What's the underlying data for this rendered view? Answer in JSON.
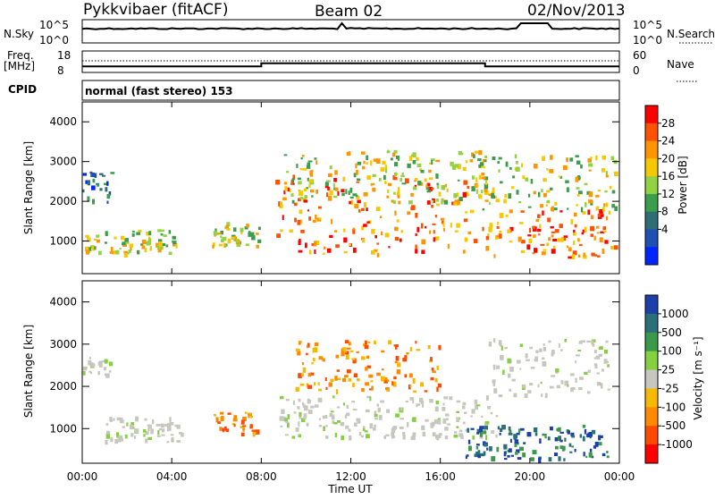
{
  "header": {
    "station": "Pykkvibaer (fitACF)",
    "beam": "Beam 02",
    "date": "02/Nov/2013"
  },
  "strips": {
    "nsky": {
      "left_label": "N.Sky",
      "right_label": "N.Search",
      "left_ticks": [
        "10^5",
        "10^0"
      ],
      "right_ticks": [
        "10^5",
        "10^0"
      ]
    },
    "freq": {
      "left_label_line1": "Freq.",
      "left_label_line2": "[MHz]",
      "right_label": "Nave",
      "left_ticks": [
        "18",
        "8"
      ],
      "right_ticks": [
        "60",
        "0"
      ],
      "freq_segments": [
        {
          "start_hr": 0,
          "end_hr": 8,
          "mhz": 10.8
        },
        {
          "start_hr": 8,
          "end_hr": 18,
          "mhz": 12.8
        },
        {
          "start_hr": 18,
          "end_hr": 24,
          "mhz": 10.8
        }
      ]
    },
    "cpid": {
      "label": "CPID",
      "value": "normal (fast stereo) 153"
    }
  },
  "chart_data": [
    {
      "type": "heatmap",
      "name": "power",
      "ylabel": "Slant Range [km]",
      "xlabel": "Time UT",
      "xlim_hours": [
        0,
        24
      ],
      "ylim_km": [
        180,
        4500
      ],
      "x_ticks": [
        "00:00",
        "04:00",
        "08:00",
        "12:00",
        "16:00",
        "20:00",
        "00:00"
      ],
      "y_ticks": [
        1000,
        2000,
        3000,
        4000
      ],
      "colorbar": {
        "label": "Power [dB]",
        "ticks": [
          "28",
          "24",
          "20",
          "16",
          "12",
          "8",
          "4"
        ],
        "colors": [
          "#ff0000",
          "#ff5200",
          "#ff9600",
          "#f5c800",
          "#93d243",
          "#3c9e4b",
          "#2e6e74",
          "#2050b2",
          "#0026ff"
        ]
      },
      "echo_regions": [
        {
          "t0": 0.1,
          "t1": 4.2,
          "r0": 700,
          "r1": 1300,
          "level": "mid"
        },
        {
          "t0": 0.0,
          "t1": 1.3,
          "r0": 2000,
          "r1": 2800,
          "level": "low"
        },
        {
          "t0": 5.8,
          "t1": 8.0,
          "r0": 900,
          "r1": 1500,
          "level": "mid"
        },
        {
          "t0": 8.6,
          "t1": 18.0,
          "r0": 700,
          "r1": 2700,
          "level": "high"
        },
        {
          "t0": 9.0,
          "t1": 18.0,
          "r0": 2000,
          "r1": 3300,
          "level": "mid"
        },
        {
          "t0": 18.0,
          "t1": 23.8,
          "r0": 600,
          "r1": 1800,
          "level": "high"
        },
        {
          "t0": 17.5,
          "t1": 23.8,
          "r0": 1800,
          "r1": 3200,
          "level": "mid"
        }
      ]
    },
    {
      "type": "heatmap",
      "name": "velocity",
      "ylabel": "Slant Range [km]",
      "xlabel": "Time UT",
      "xlim_hours": [
        0,
        24
      ],
      "ylim_km": [
        180,
        4500
      ],
      "x_ticks": [
        "00:00",
        "04:00",
        "08:00",
        "12:00",
        "16:00",
        "20:00",
        "00:00"
      ],
      "y_ticks": [
        1000,
        2000,
        3000,
        4000
      ],
      "colorbar": {
        "label": "Velocity [m s⁻¹]",
        "ticks": [
          "1000",
          "500",
          "100",
          "25",
          "-25",
          "-100",
          "-500",
          "-1000"
        ],
        "colors": [
          "#1d3fa8",
          "#2a6f7a",
          "#3a9a4a",
          "#85d040",
          "#c7c7c0",
          "#f7b800",
          "#ff8a00",
          "#ff4a00",
          "#ff0000"
        ]
      },
      "echo_regions": [
        {
          "t0": 0.8,
          "t1": 4.5,
          "r0": 700,
          "r1": 1300,
          "class": "ground"
        },
        {
          "t0": 0.0,
          "t1": 1.2,
          "r0": 2300,
          "r1": 2700,
          "class": "ground"
        },
        {
          "t0": 5.8,
          "t1": 7.8,
          "r0": 900,
          "r1": 1400,
          "class": "neg"
        },
        {
          "t0": 8.8,
          "t1": 18.5,
          "r0": 800,
          "r1": 1800,
          "class": "ground"
        },
        {
          "t0": 9.5,
          "t1": 16.0,
          "r0": 1900,
          "r1": 3100,
          "class": "neg"
        },
        {
          "t0": 18.0,
          "t1": 23.5,
          "r0": 1800,
          "r1": 3200,
          "class": "ground"
        },
        {
          "t0": 17.0,
          "t1": 23.5,
          "r0": 300,
          "r1": 1100,
          "class": "pos"
        }
      ]
    }
  ]
}
